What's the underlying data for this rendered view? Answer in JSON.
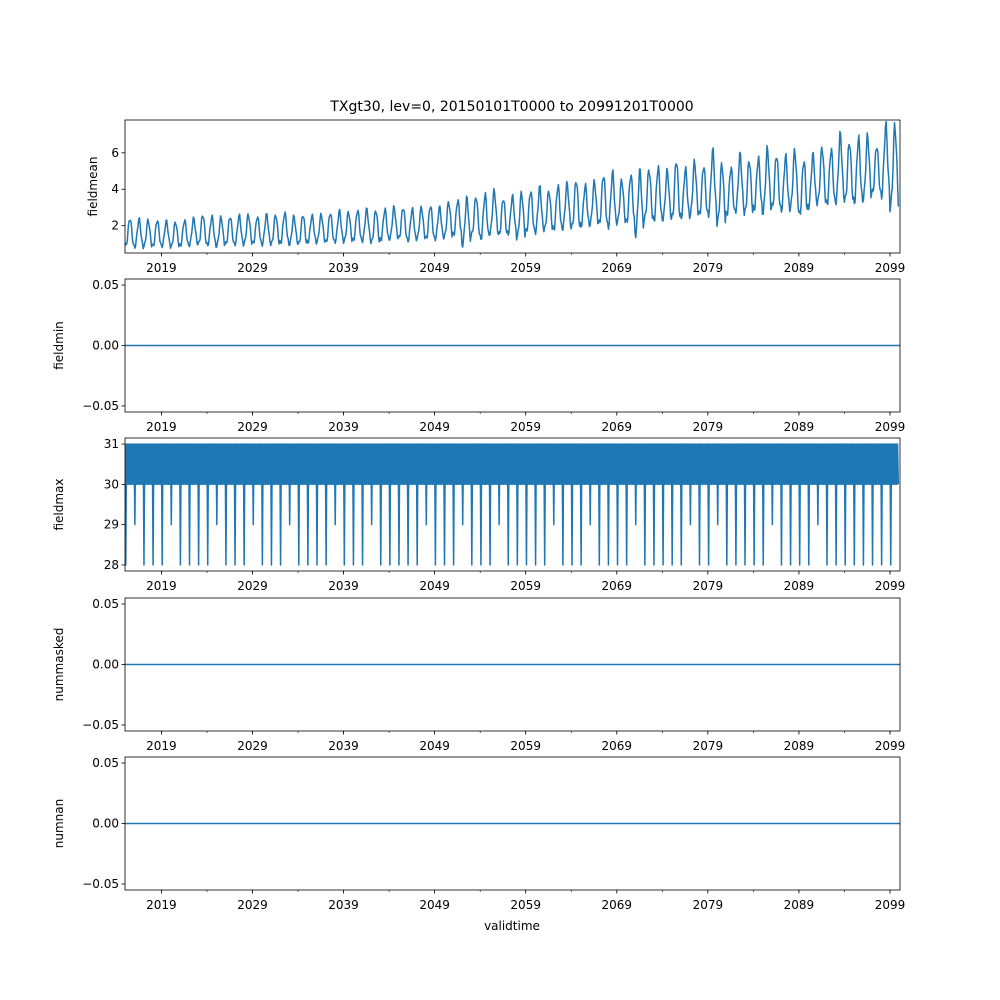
{
  "figure": {
    "title": "TXgt30, lev=0, 20150101T0000 to 20991201T0000",
    "x_label": "validtime"
  },
  "colors": {
    "series": "#1f77b4",
    "axes": "#000000",
    "background": "#ffffff"
  },
  "chart_data": [
    {
      "type": "line",
      "name": "fieldmean",
      "ylabel": "fieldmean",
      "xlabel": "",
      "x_range": [
        "2015-01",
        "2099-12"
      ],
      "xlim": [
        2015.0,
        2100.1
      ],
      "ylim": [
        0.5,
        7.8
      ],
      "yticks": [
        2,
        4,
        6
      ],
      "ytick_labels": [
        "2",
        "4",
        "6"
      ],
      "xticks": [
        2019,
        2029,
        2039,
        2049,
        2059,
        2069,
        2079,
        2089,
        2099
      ],
      "xtick_labels": [
        "2019",
        "2029",
        "2039",
        "2049",
        "2059",
        "2069",
        "2079",
        "2089",
        "2099"
      ],
      "frequency": "monthly",
      "summary": "seasonal oscillation, annual minimum rising from about 0.8 (2015) to about 3 (2099), annual maximum rising from about 2.3 to about 7.5",
      "annual_low": [
        0.9,
        0.85,
        0.85,
        0.9,
        0.9,
        0.85,
        0.9,
        0.95,
        1.0,
        0.95,
        0.9,
        1.0,
        1.0,
        1.0,
        1.05,
        1.0,
        1.0,
        1.05,
        1.0,
        1.0,
        1.1,
        1.1,
        1.1,
        1.15,
        1.15,
        1.2,
        1.2,
        1.1,
        1.2,
        1.3,
        1.3,
        1.2,
        1.3,
        1.3,
        1.3,
        1.4,
        1.5,
        1.0,
        1.5,
        1.3,
        1.6,
        1.5,
        1.6,
        1.4,
        1.7,
        1.7,
        1.8,
        1.8,
        1.9,
        1.9,
        2.0,
        2.1,
        2.1,
        2.0,
        2.2,
        2.2,
        1.6,
        2.4,
        2.3,
        2.4,
        2.4,
        2.5,
        2.6,
        2.6,
        2.7,
        2.2,
        2.6,
        2.9,
        2.7,
        2.9,
        2.8,
        3.0,
        2.9,
        3.0,
        2.6,
        3.1,
        3.3,
        3.2,
        3.4,
        3.4,
        3.3,
        3.5,
        3.8,
        3.7,
        3.1
      ],
      "annual_high": [
        2.4,
        2.35,
        2.3,
        2.3,
        2.25,
        2.2,
        2.3,
        2.4,
        2.6,
        2.5,
        2.45,
        2.5,
        2.55,
        2.6,
        2.5,
        2.6,
        2.6,
        2.7,
        2.5,
        2.6,
        2.55,
        2.6,
        2.7,
        2.8,
        2.75,
        2.85,
        2.9,
        2.85,
        2.9,
        3.0,
        3.0,
        2.9,
        3.0,
        3.1,
        3.0,
        3.3,
        3.4,
        3.5,
        3.6,
        3.7,
        3.9,
        3.5,
        3.6,
        3.8,
        3.9,
        4.1,
        3.9,
        4.2,
        4.3,
        4.5,
        4.2,
        4.4,
        4.8,
        4.9,
        4.5,
        4.8,
        5.0,
        5.1,
        5.2,
        5.0,
        5.6,
        5.1,
        5.5,
        5.3,
        6.1,
        5.4,
        5.2,
        5.9,
        5.6,
        5.7,
        6.2,
        5.9,
        5.8,
        6.1,
        5.6,
        5.9,
        6.3,
        6.2,
        7.0,
        6.6,
        6.8,
        6.9,
        6.4,
        7.5,
        7.5
      ]
    },
    {
      "type": "line",
      "name": "fieldmin",
      "ylabel": "fieldmin",
      "xlabel": "",
      "xlim": [
        2015.0,
        2100.1
      ],
      "ylim": [
        -0.055,
        0.055
      ],
      "yticks": [
        -0.05,
        0.0,
        0.05
      ],
      "ytick_labels": [
        "−0.05",
        "0.00",
        "0.05"
      ],
      "xticks": [
        2019,
        2029,
        2039,
        2049,
        2059,
        2069,
        2079,
        2089,
        2099
      ],
      "xtick_labels": [
        "2019",
        "2029",
        "2039",
        "2049",
        "2059",
        "2069",
        "2079",
        "2089",
        "2099"
      ],
      "constant_value": 0.0
    },
    {
      "type": "line",
      "name": "fieldmax",
      "ylabel": "fieldmax",
      "xlabel": "",
      "xlim": [
        2015.0,
        2100.1
      ],
      "ylim": [
        27.85,
        31.15
      ],
      "yticks": [
        28,
        29,
        30,
        31
      ],
      "ytick_labels": [
        "28",
        "29",
        "30",
        "31"
      ],
      "xticks": [
        2019,
        2029,
        2039,
        2049,
        2059,
        2069,
        2079,
        2089,
        2099
      ],
      "xtick_labels": [
        "2019",
        "2029",
        "2039",
        "2049",
        "2059",
        "2069",
        "2079",
        "2089",
        "2099"
      ],
      "summary": "monthly values oscillating between 30 and 31; once per year the value drops to about 29 or 28",
      "annual_dip": [
        28,
        29,
        28,
        28,
        28,
        29,
        28,
        28,
        28,
        28,
        29,
        28,
        28,
        28,
        29,
        28,
        28,
        28,
        29,
        28,
        28,
        28,
        28,
        29,
        28,
        28,
        28,
        29,
        28,
        28,
        28,
        28,
        28,
        29,
        28,
        28,
        28,
        29,
        28,
        28,
        28,
        29,
        28,
        28,
        28,
        28,
        28,
        29,
        28,
        28,
        28,
        29,
        28,
        28,
        28,
        28,
        29,
        28,
        28,
        28,
        28,
        28,
        29,
        28,
        28,
        29,
        28,
        28,
        28,
        28,
        28,
        29,
        28,
        28,
        28,
        28,
        29,
        28,
        28,
        28,
        28,
        28,
        28,
        28,
        28
      ]
    },
    {
      "type": "line",
      "name": "nummasked",
      "ylabel": "nummasked",
      "xlabel": "",
      "xlim": [
        2015.0,
        2100.1
      ],
      "ylim": [
        -0.055,
        0.055
      ],
      "yticks": [
        -0.05,
        0.0,
        0.05
      ],
      "ytick_labels": [
        "−0.05",
        "0.00",
        "0.05"
      ],
      "xticks": [
        2019,
        2029,
        2039,
        2049,
        2059,
        2069,
        2079,
        2089,
        2099
      ],
      "xtick_labels": [
        "2019",
        "2029",
        "2039",
        "2049",
        "2059",
        "2069",
        "2079",
        "2089",
        "2099"
      ],
      "constant_value": 0.0
    },
    {
      "type": "line",
      "name": "numnan",
      "ylabel": "numnan",
      "xlabel": "validtime",
      "xlim": [
        2015.0,
        2100.1
      ],
      "ylim": [
        -0.055,
        0.055
      ],
      "yticks": [
        -0.05,
        0.0,
        0.05
      ],
      "ytick_labels": [
        "−0.05",
        "0.00",
        "0.05"
      ],
      "xticks": [
        2019,
        2029,
        2039,
        2049,
        2059,
        2069,
        2079,
        2089,
        2099
      ],
      "xtick_labels": [
        "2019",
        "2029",
        "2039",
        "2049",
        "2059",
        "2069",
        "2079",
        "2089",
        "2099"
      ],
      "constant_value": 0.0
    }
  ]
}
